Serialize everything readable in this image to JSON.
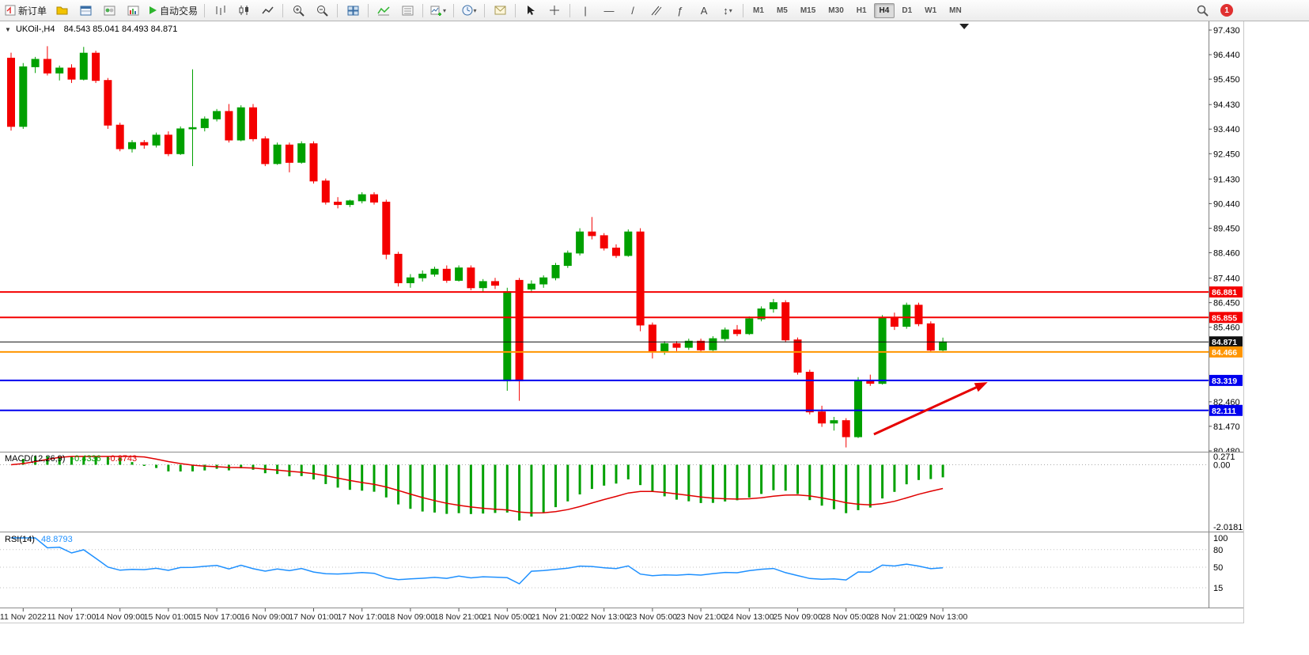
{
  "toolbar": {
    "new_order_label": "新订单",
    "autotrading_label": "自动交易",
    "timeframes": [
      "M1",
      "M5",
      "M15",
      "M30",
      "H1",
      "H4",
      "D1",
      "W1",
      "MN"
    ],
    "active_timeframe": "H4",
    "notification_badge": "1"
  },
  "chart": {
    "title": "UKOil-,H4",
    "ohlc_display": "84.543 85.041 84.493 84.871"
  },
  "chart_data": {
    "type": "candlestick",
    "symbol": "UKOil-",
    "timeframe": "H4",
    "current_bar": {
      "open": 84.543,
      "high": 85.041,
      "low": 84.493,
      "close": 84.871
    },
    "colors": {
      "up": "#00a000",
      "down": "#f40000",
      "rsi_line": "#1e90ff",
      "macd_signal": "#e00000",
      "macd_hist": "#00a000"
    },
    "price_axis": {
      "min": 80.48,
      "max": 97.43,
      "labels": [
        "97.430",
        "96.440",
        "95.450",
        "94.430",
        "93.440",
        "92.450",
        "91.430",
        "90.440",
        "89.450",
        "88.460",
        "87.440",
        "86.450",
        "85.460",
        "82.460",
        "81.470",
        "80.480"
      ]
    },
    "candles": [
      [
        96.3,
        96.52,
        93.38,
        93.55
      ],
      [
        93.55,
        96.1,
        93.45,
        95.95
      ],
      [
        95.95,
        96.35,
        95.7,
        96.25
      ],
      [
        96.25,
        96.78,
        95.6,
        95.7
      ],
      [
        95.7,
        96.0,
        95.4,
        95.9
      ],
      [
        95.9,
        96.05,
        95.3,
        95.45
      ],
      [
        95.45,
        96.75,
        95.4,
        96.5
      ],
      [
        96.5,
        96.6,
        95.3,
        95.4
      ],
      [
        95.4,
        95.5,
        93.45,
        93.6
      ],
      [
        93.6,
        93.7,
        92.55,
        92.65
      ],
      [
        92.65,
        93.0,
        92.5,
        92.9
      ],
      [
        92.9,
        93.0,
        92.65,
        92.8
      ],
      [
        92.8,
        93.3,
        92.7,
        93.2
      ],
      [
        93.2,
        93.35,
        92.35,
        92.45
      ],
      [
        92.45,
        93.55,
        92.4,
        93.45
      ],
      [
        93.45,
        95.85,
        91.95,
        93.5
      ],
      [
        93.5,
        93.95,
        93.35,
        93.85
      ],
      [
        93.85,
        94.25,
        93.75,
        94.15
      ],
      [
        94.15,
        94.45,
        92.9,
        93.0
      ],
      [
        93.0,
        94.4,
        92.95,
        94.3
      ],
      [
        94.3,
        94.45,
        92.95,
        93.05
      ],
      [
        93.05,
        93.15,
        91.95,
        92.05
      ],
      [
        92.05,
        92.9,
        92.0,
        92.8
      ],
      [
        92.8,
        92.9,
        91.7,
        92.1
      ],
      [
        92.1,
        92.95,
        92.05,
        92.85
      ],
      [
        92.85,
        92.95,
        91.25,
        91.35
      ],
      [
        91.35,
        91.45,
        90.4,
        90.5
      ],
      [
        90.5,
        90.7,
        90.25,
        90.4
      ],
      [
        90.4,
        90.6,
        90.3,
        90.55
      ],
      [
        90.55,
        90.9,
        90.45,
        90.8
      ],
      [
        90.8,
        90.9,
        90.4,
        90.5
      ],
      [
        90.5,
        90.6,
        88.2,
        88.4
      ],
      [
        88.4,
        88.5,
        87.1,
        87.25
      ],
      [
        87.25,
        87.6,
        87.05,
        87.45
      ],
      [
        87.45,
        87.75,
        87.3,
        87.6
      ],
      [
        87.6,
        87.9,
        87.5,
        87.8
      ],
      [
        87.8,
        87.95,
        87.25,
        87.35
      ],
      [
        87.35,
        87.95,
        87.3,
        87.85
      ],
      [
        87.85,
        87.95,
        86.95,
        87.05
      ],
      [
        87.05,
        87.4,
        86.9,
        87.3
      ],
      [
        87.3,
        87.45,
        87.0,
        87.15
      ],
      [
        83.3,
        87.05,
        82.9,
        86.9
      ],
      [
        87.35,
        87.45,
        82.5,
        83.3
      ],
      [
        87.0,
        87.35,
        86.85,
        87.2
      ],
      [
        87.2,
        87.55,
        87.05,
        87.45
      ],
      [
        87.45,
        88.05,
        87.35,
        87.95
      ],
      [
        87.95,
        88.55,
        87.85,
        88.45
      ],
      [
        88.45,
        89.45,
        88.35,
        89.3
      ],
      [
        89.3,
        89.9,
        89.0,
        89.15
      ],
      [
        89.15,
        89.25,
        88.55,
        88.65
      ],
      [
        88.65,
        88.8,
        88.25,
        88.35
      ],
      [
        88.35,
        89.4,
        88.3,
        89.3
      ],
      [
        89.3,
        89.45,
        85.3,
        85.55
      ],
      [
        85.55,
        85.65,
        84.2,
        84.5
      ],
      [
        84.5,
        84.9,
        84.35,
        84.8
      ],
      [
        84.8,
        84.9,
        84.5,
        84.65
      ],
      [
        84.65,
        85.0,
        84.55,
        84.9
      ],
      [
        84.9,
        85.0,
        84.45,
        84.55
      ],
      [
        84.55,
        85.1,
        84.5,
        85.0
      ],
      [
        85.0,
        85.45,
        84.9,
        85.35
      ],
      [
        85.35,
        85.55,
        85.1,
        85.2
      ],
      [
        85.2,
        85.9,
        85.15,
        85.8
      ],
      [
        85.8,
        86.3,
        85.7,
        86.2
      ],
      [
        86.2,
        86.6,
        86.05,
        86.45
      ],
      [
        86.45,
        86.55,
        84.85,
        84.95
      ],
      [
        84.95,
        85.05,
        83.55,
        83.65
      ],
      [
        83.65,
        83.75,
        81.95,
        82.05
      ],
      [
        82.05,
        82.3,
        81.45,
        81.6
      ],
      [
        81.6,
        81.85,
        81.3,
        81.7
      ],
      [
        81.7,
        81.8,
        80.62,
        81.05
      ],
      [
        81.05,
        83.45,
        81.0,
        83.3
      ],
      [
        83.3,
        83.55,
        83.1,
        83.2
      ],
      [
        83.2,
        85.95,
        83.15,
        85.85
      ],
      [
        85.85,
        86.05,
        85.35,
        85.5
      ],
      [
        85.5,
        86.45,
        85.4,
        86.35
      ],
      [
        86.35,
        86.45,
        85.5,
        85.6
      ],
      [
        85.6,
        85.7,
        84.45,
        84.54
      ],
      [
        84.543,
        85.041,
        84.493,
        84.871
      ]
    ],
    "x_labels": [
      {
        "bar": 1,
        "text": "11 Nov 2022"
      },
      {
        "bar": 5,
        "text": "11 Nov 17:00"
      },
      {
        "bar": 9,
        "text": "14 Nov 09:00"
      },
      {
        "bar": 13,
        "text": "15 Nov 01:00"
      },
      {
        "bar": 17,
        "text": "15 Nov 17:00"
      },
      {
        "bar": 21,
        "text": "16 Nov 09:00"
      },
      {
        "bar": 25,
        "text": "17 Nov 01:00"
      },
      {
        "bar": 29,
        "text": "17 Nov 17:00"
      },
      {
        "bar": 33,
        "text": "18 Nov 09:00"
      },
      {
        "bar": 37,
        "text": "18 Nov 21:00"
      },
      {
        "bar": 41,
        "text": "21 Nov 05:00"
      },
      {
        "bar": 45,
        "text": "21 Nov 21:00"
      },
      {
        "bar": 49,
        "text": "22 Nov 13:00"
      },
      {
        "bar": 53,
        "text": "23 Nov 05:00"
      },
      {
        "bar": 57,
        "text": "23 Nov 21:00"
      },
      {
        "bar": 61,
        "text": "24 Nov 13:00"
      },
      {
        "bar": 65,
        "text": "25 Nov 09:00"
      },
      {
        "bar": 69,
        "text": "28 Nov 05:00"
      },
      {
        "bar": 73,
        "text": "28 Nov 21:00"
      },
      {
        "bar": 77,
        "text": "29 Nov 13:00"
      }
    ],
    "hlines": [
      {
        "price": 86.881,
        "color": "#f40000",
        "width": 2
      },
      {
        "price": 85.855,
        "color": "#f40000",
        "width": 2
      },
      {
        "price": 84.871,
        "color": "#111111",
        "width": 1
      },
      {
        "price": 84.466,
        "color": "#ff9500",
        "width": 2
      },
      {
        "price": 83.319,
        "color": "#0000ee",
        "width": 2
      },
      {
        "price": 82.111,
        "color": "#0000ee",
        "width": 2
      }
    ],
    "arrow": {
      "from_bar": 71.3,
      "from_price": 81.15,
      "to_bar": 80.7,
      "to_price": 83.25,
      "color": "#e60000"
    },
    "macd": {
      "label": "MACD(12,26,9)",
      "value_main": "-0.4336",
      "value_signal": "-0.8743",
      "axis_labels": [
        "0.271",
        "0.00",
        "-2.0181"
      ],
      "scale": {
        "min": -2.0181,
        "max": 0.271
      },
      "params": {
        "fast": 12,
        "slow": 26,
        "signal": 9
      }
    },
    "rsi": {
      "label": "RSI(14)",
      "value": "48.8793",
      "period": 14,
      "axis_labels": [
        "100",
        "80",
        "50",
        "15"
      ],
      "levels": [
        80,
        50,
        15
      ]
    }
  }
}
